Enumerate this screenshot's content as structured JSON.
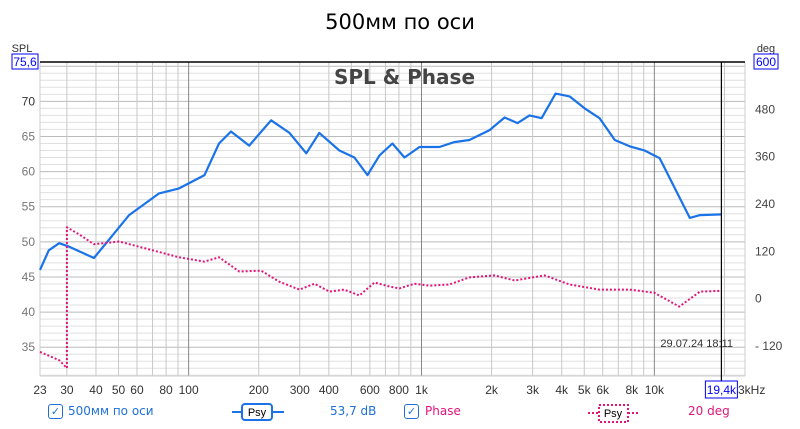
{
  "title": "500мм по оси",
  "chart_data": {
    "type": "line",
    "title": "SPL & Phase",
    "x_scale": "log",
    "xlim": [
      23,
      24500
    ],
    "x_tick_labels": [
      "23",
      "30",
      "40",
      "50",
      "60",
      "80",
      "100",
      "200",
      "300",
      "400",
      "600",
      "800",
      "1k",
      "2k",
      "3k",
      "4k",
      "5k",
      "6k",
      "8k",
      "10k"
    ],
    "x_unit_label": "3kHz",
    "left_axis": {
      "label": "SPL",
      "ylim": [
        30.9,
        75.6
      ],
      "ticks": [
        35,
        40,
        45,
        50,
        55,
        60,
        65,
        70
      ],
      "top_readout": "75,6"
    },
    "right_axis": {
      "label": "deg",
      "ylim": [
        -196,
        600
      ],
      "ticks": [
        -120,
        0,
        120,
        240,
        360,
        480
      ],
      "top_readout": "600"
    },
    "grid": true,
    "cursor": {
      "x_readout": "19,4k",
      "x": 19400
    },
    "timestamp": "29.07.24 18:11",
    "series": [
      {
        "name": "500мм по оси",
        "axis": "left",
        "color": "#1a73e8",
        "style": "solid",
        "x": [
          23,
          25.1,
          27.8,
          30.7,
          39.2,
          45.5,
          55.5,
          74.7,
          91,
          117,
          135,
          152,
          182,
          226,
          271,
          320,
          364,
          444,
          515,
          586,
          660,
          750,
          845,
          980,
          1194,
          1385,
          1606,
          1960,
          2275,
          2587,
          2910,
          3280,
          3767,
          4324,
          5020,
          5820,
          6760,
          7830,
          9080,
          10540,
          14200,
          15700,
          19500
        ],
        "y": [
          46.0,
          48.8,
          49.8,
          49.3,
          47.7,
          50.3,
          53.8,
          56.9,
          57.6,
          59.5,
          64.0,
          65.7,
          63.7,
          67.3,
          65.5,
          62.6,
          65.5,
          63.0,
          62.0,
          59.5,
          62.3,
          64.0,
          62.0,
          63.5,
          63.5,
          64.2,
          64.5,
          65.9,
          67.7,
          66.9,
          68.0,
          67.6,
          71.1,
          70.7,
          69.0,
          67.6,
          64.5,
          63.6,
          63.0,
          61.9,
          53.4,
          53.8,
          53.9
        ]
      },
      {
        "name": "Phase",
        "axis": "right",
        "color": "#e0157a",
        "style": "dotted",
        "x": [
          23,
          27.8,
          30,
          30,
          33.9,
          39.2,
          50.3,
          67.7,
          91,
          117,
          135,
          165,
          205,
          245,
          299,
          347,
          402,
          466,
          541,
          628,
          728,
          804,
          933,
          1081,
          1318,
          1606,
          2058,
          2510,
          3378,
          4324,
          5820,
          7830,
          10000,
          12800,
          15700,
          19500
        ],
        "y": [
          -135,
          -156,
          -176,
          181,
          163,
          138,
          145,
          125,
          105,
          94,
          105,
          69,
          71,
          43,
          23,
          38,
          18,
          23,
          8,
          41,
          31,
          26,
          38,
          33,
          36,
          54,
          59,
          46,
          59,
          36,
          23,
          23,
          15,
          -20,
          18,
          20
        ]
      }
    ]
  },
  "legend": {
    "spl_name": "500мм по оси",
    "spl_smoothing": "Psy",
    "spl_value": "53,7 dB",
    "phase_name": "Phase",
    "phase_smoothing": "Psy",
    "phase_value": "20 deg",
    "check_glyph": "✓"
  }
}
